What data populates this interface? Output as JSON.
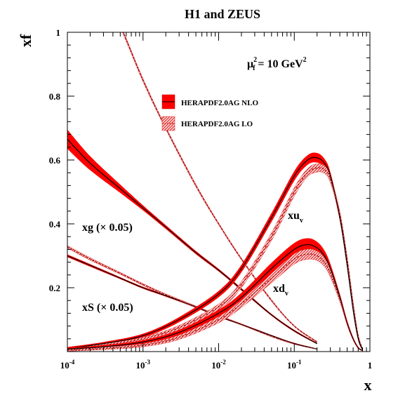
{
  "chart_data": {
    "type": "area",
    "title": "H1 and ZEUS",
    "ylabel": "xf",
    "xlabel": "x",
    "x_scale": "log",
    "xlim": [
      0.0001,
      1
    ],
    "ylim": [
      0,
      1
    ],
    "yticks": [
      "0.2",
      "0.4",
      "0.6",
      "0.8",
      "1"
    ],
    "xticks": [
      {
        "value": 0.0001,
        "base": "10",
        "exp": "-4"
      },
      {
        "value": 0.001,
        "base": "10",
        "exp": "-3"
      },
      {
        "value": 0.01,
        "base": "10",
        "exp": "-2"
      },
      {
        "value": 0.1,
        "base": "10",
        "exp": "-1"
      },
      {
        "value": 1,
        "base": "1",
        "exp": ""
      }
    ],
    "scale_note": {
      "mu": "μ",
      "sub": "f",
      "sup": "2",
      "text": " = 10 GeV",
      "unit_sup": "2"
    },
    "legend": {
      "placement": "top-center",
      "entries": [
        "HERAPDF2.0AG NLO",
        "HERAPDF2.0AG LO"
      ]
    },
    "colors": {
      "nlo_band": "#ff0000",
      "lo_band": "#e03030",
      "central": "#000000"
    },
    "series": [
      {
        "label_base": "xg (× 0.05)",
        "label_sub": "",
        "x": [
          0.0001,
          0.0002,
          0.0005,
          0.001,
          0.002,
          0.005,
          0.01,
          0.02,
          0.05,
          0.1,
          0.2
        ],
        "nlo_central": [
          0.665,
          0.59,
          0.51,
          0.45,
          0.39,
          0.31,
          0.255,
          0.195,
          0.115,
          0.065,
          0.025
        ],
        "nlo_width": [
          0.03,
          0.022,
          0.013,
          0.008,
          0.006,
          0.005,
          0.004,
          0.004,
          0.003,
          0.003,
          0.002
        ],
        "lo_central": [
          1.42,
          1.22,
          1.02,
          0.85,
          0.7,
          0.52,
          0.4,
          0.29,
          0.16,
          0.08,
          0.03
        ],
        "lo_width": [
          0.006,
          0.006,
          0.005,
          0.005,
          0.004,
          0.004,
          0.003,
          0.003,
          0.003,
          0.002,
          0.002
        ]
      },
      {
        "label_base": "xS (× 0.05)",
        "label_sub": "",
        "x": [
          0.0001,
          0.0002,
          0.0005,
          0.001,
          0.002,
          0.005,
          0.01,
          0.02,
          0.05,
          0.1,
          0.2
        ],
        "nlo_central": [
          0.3,
          0.27,
          0.23,
          0.2,
          0.175,
          0.14,
          0.11,
          0.085,
          0.05,
          0.025,
          0.008
        ],
        "nlo_width": [
          0.004,
          0.004,
          0.003,
          0.003,
          0.003,
          0.003,
          0.002,
          0.002,
          0.002,
          0.002,
          0.001
        ],
        "lo_central": [
          0.328,
          0.29,
          0.245,
          0.21,
          0.178,
          0.14,
          0.112,
          0.085,
          0.048,
          0.025,
          0.008
        ],
        "lo_width": [
          0.004,
          0.004,
          0.003,
          0.003,
          0.003,
          0.003,
          0.002,
          0.002,
          0.002,
          0.002,
          0.001
        ]
      },
      {
        "label_base": "xu",
        "label_sub": "v",
        "x": [
          0.0001,
          0.0003,
          0.001,
          0.003,
          0.01,
          0.02,
          0.05,
          0.1,
          0.15,
          0.2,
          0.25,
          0.3,
          0.4,
          0.5,
          0.6,
          0.7,
          0.8
        ],
        "nlo_central": [
          0.01,
          0.025,
          0.05,
          0.1,
          0.18,
          0.26,
          0.42,
          0.55,
          0.6,
          0.607,
          0.59,
          0.55,
          0.42,
          0.27,
          0.13,
          0.04,
          0.005
        ],
        "nlo_width": [
          0.004,
          0.005,
          0.006,
          0.008,
          0.01,
          0.012,
          0.014,
          0.015,
          0.015,
          0.015,
          0.014,
          0.012,
          0.01,
          0.008,
          0.006,
          0.004,
          0.002
        ],
        "lo_central": [
          0.007,
          0.02,
          0.04,
          0.075,
          0.14,
          0.21,
          0.36,
          0.5,
          0.56,
          0.575,
          0.57,
          0.54,
          0.43,
          0.29,
          0.15,
          0.05,
          0.008
        ],
        "lo_width": [
          0.003,
          0.004,
          0.005,
          0.007,
          0.009,
          0.01,
          0.012,
          0.013,
          0.013,
          0.013,
          0.012,
          0.011,
          0.009,
          0.007,
          0.005,
          0.003,
          0.002
        ]
      },
      {
        "label_base": "xd",
        "label_sub": "v",
        "x": [
          0.0001,
          0.0003,
          0.001,
          0.003,
          0.01,
          0.02,
          0.05,
          0.1,
          0.15,
          0.2,
          0.25,
          0.3,
          0.4,
          0.5,
          0.6,
          0.7,
          0.8
        ],
        "nlo_central": [
          0.008,
          0.015,
          0.03,
          0.06,
          0.12,
          0.17,
          0.26,
          0.32,
          0.335,
          0.325,
          0.3,
          0.26,
          0.17,
          0.09,
          0.04,
          0.012,
          0.003
        ],
        "nlo_width": [
          0.004,
          0.005,
          0.006,
          0.008,
          0.011,
          0.014,
          0.018,
          0.02,
          0.02,
          0.019,
          0.017,
          0.015,
          0.011,
          0.008,
          0.005,
          0.003,
          0.001
        ],
        "lo_central": [
          0.004,
          0.01,
          0.02,
          0.045,
          0.1,
          0.15,
          0.23,
          0.29,
          0.305,
          0.3,
          0.28,
          0.245,
          0.165,
          0.09,
          0.04,
          0.012,
          0.003
        ],
        "lo_width": [
          0.003,
          0.004,
          0.005,
          0.007,
          0.01,
          0.012,
          0.015,
          0.016,
          0.016,
          0.015,
          0.014,
          0.012,
          0.009,
          0.006,
          0.004,
          0.002,
          0.001
        ]
      }
    ]
  }
}
